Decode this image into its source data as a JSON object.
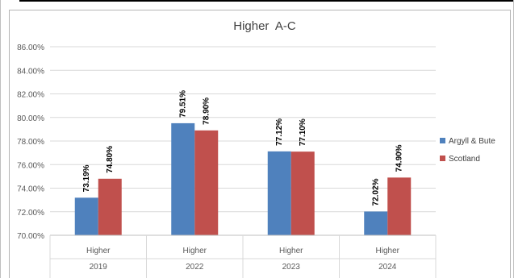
{
  "chart_data": {
    "type": "bar",
    "title": "Higher  A-C",
    "categories": [
      "Higher",
      "Higher",
      "Higher",
      "Higher"
    ],
    "group_labels": [
      "2019",
      "2022",
      "2023",
      "2024"
    ],
    "series": [
      {
        "name": "Argyll & Bute",
        "color": "#4f81bd",
        "values": [
          73.19,
          79.51,
          77.12,
          72.02
        ],
        "labels": [
          "73.19%",
          "79.51%",
          "77.12%",
          "72.02%"
        ]
      },
      {
        "name": "Scotland",
        "color": "#c0504d",
        "values": [
          74.8,
          78.9,
          77.1,
          74.9
        ],
        "labels": [
          "74.80%",
          "78.90%",
          "77.10%",
          "74.90%"
        ]
      }
    ],
    "ylim": [
      70,
      86
    ],
    "yticks": [
      "70.00%",
      "72.00%",
      "74.00%",
      "76.00%",
      "78.00%",
      "80.00%",
      "82.00%",
      "84.00%",
      "86.00%"
    ],
    "grid": true,
    "legend_position": "right"
  }
}
